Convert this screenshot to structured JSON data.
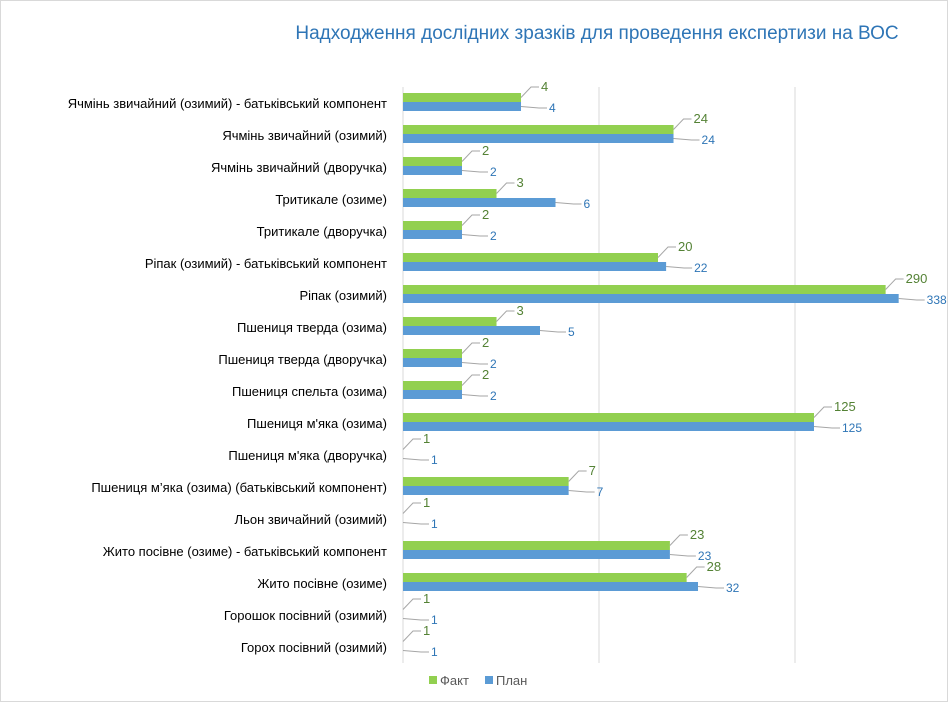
{
  "chart_data": {
    "type": "bar",
    "orientation": "horizontal",
    "title": "Надходження дослідних зразків для проведення експертизи на ВОС",
    "xscale": "log",
    "xlim": [
      1,
      1000
    ],
    "grid": true,
    "legend_position": "bottom",
    "categories": [
      "Ячмінь звичайний (озимий) - батьківський компонент",
      "Ячмінь звичайний (озимий)",
      "Ячмінь звичайний (дворучка)",
      "Тритикале (озиме)",
      "Тритикале (дворучка)",
      "Ріпак (озимий) - батьківський компонент",
      "Ріпак (озимий)",
      "Пшениця тверда (озима)",
      "Пшениця тверда (дворучка)",
      "Пшениця спельта (озима)",
      "Пшениця м'яка (озима)",
      "Пшениця м'яка (дворучка)",
      "Пшениця м’яка (озима) (батьківський компонент)",
      "Льон звичайний (озимий)",
      "Жито посівне (озиме) - батьківський компонент",
      "Жито посівне (озиме)",
      "Горошок  посівний (озимий)",
      "Горох посівний (озимий)"
    ],
    "series": [
      {
        "name": "Факт",
        "color": "#92d050",
        "label_color": "#548235",
        "values": [
          4,
          24,
          2,
          3,
          2,
          20,
          290,
          3,
          2,
          2,
          125,
          1,
          7,
          1,
          23,
          28,
          1,
          1
        ]
      },
      {
        "name": "План",
        "color": "#5b9bd5",
        "label_color": "#2e75b6",
        "values": [
          4,
          24,
          2,
          6,
          2,
          22,
          338,
          5,
          2,
          2,
          125,
          1,
          7,
          1,
          23,
          32,
          1,
          1
        ]
      }
    ]
  },
  "colors": {
    "title": "#2e75b6",
    "grid": "#d9d9d9",
    "leader": "#a6a6a6"
  }
}
